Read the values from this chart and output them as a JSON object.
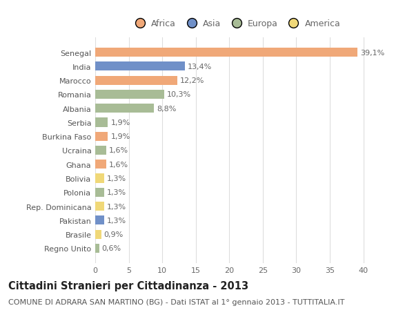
{
  "title": "Cittadini Stranieri per Cittadinanza - 2013",
  "subtitle": "COMUNE DI ADRARA SAN MARTINO (BG) - Dati ISTAT al 1° gennaio 2013 - TUTTITALIA.IT",
  "countries": [
    "Senegal",
    "India",
    "Marocco",
    "Romania",
    "Albania",
    "Serbia",
    "Burkina Faso",
    "Ucraina",
    "Ghana",
    "Bolivia",
    "Polonia",
    "Rep. Dominicana",
    "Pakistan",
    "Brasile",
    "Regno Unito"
  ],
  "values": [
    39.1,
    13.4,
    12.2,
    10.3,
    8.8,
    1.9,
    1.9,
    1.6,
    1.6,
    1.3,
    1.3,
    1.3,
    1.3,
    0.9,
    0.6
  ],
  "labels": [
    "39,1%",
    "13,4%",
    "12,2%",
    "10,3%",
    "8,8%",
    "1,9%",
    "1,9%",
    "1,6%",
    "1,6%",
    "1,3%",
    "1,3%",
    "1,3%",
    "1,3%",
    "0,9%",
    "0,6%"
  ],
  "colors": [
    "#F0A878",
    "#7090C8",
    "#F0A878",
    "#A8BC96",
    "#A8BC96",
    "#A8BC96",
    "#F0A878",
    "#A8BC96",
    "#F0A878",
    "#F0D878",
    "#A8BC96",
    "#F0D878",
    "#7090C8",
    "#F0D878",
    "#A8BC96"
  ],
  "legend_labels": [
    "Africa",
    "Asia",
    "Europa",
    "America"
  ],
  "legend_colors": [
    "#F0A878",
    "#7090C8",
    "#A8BC96",
    "#F0D878"
  ],
  "xlim": [
    0,
    42
  ],
  "xticks": [
    0,
    5,
    10,
    15,
    20,
    25,
    30,
    35,
    40
  ],
  "background_color": "#FFFFFF",
  "grid_color": "#DDDDDD",
  "title_fontsize": 10.5,
  "subtitle_fontsize": 8,
  "tick_fontsize": 8,
  "label_fontsize": 8,
  "legend_fontsize": 9
}
